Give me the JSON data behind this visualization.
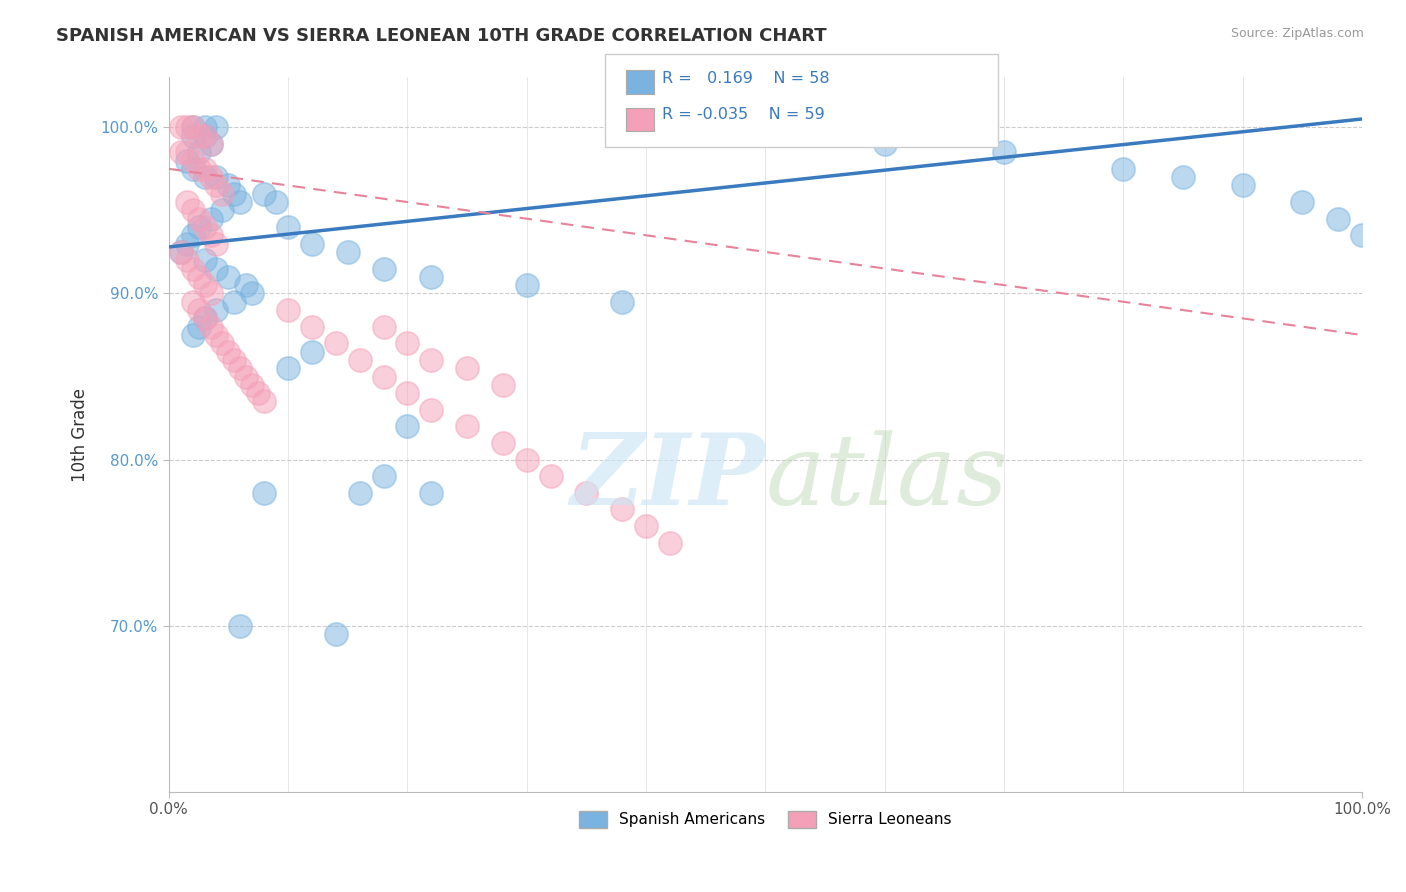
{
  "title": "SPANISH AMERICAN VS SIERRA LEONEAN 10TH GRADE CORRELATION CHART",
  "source": "Source: ZipAtlas.com",
  "ylabel": "10th Grade",
  "xlim": [
    0.0,
    1.0
  ],
  "ylim": [
    0.6,
    1.03
  ],
  "ytick_positions": [
    0.7,
    0.8,
    0.9,
    1.0
  ],
  "ytick_labels": [
    "70.0%",
    "80.0%",
    "90.0%",
    "100.0%"
  ],
  "legend_label1": "Spanish Americans",
  "legend_label2": "Sierra Leoneans",
  "color_blue": "#7ab3e0",
  "color_pink": "#f4a0b8",
  "blue_line_color": "#3a7abf",
  "pink_line_color": "#e8829a",
  "blue_scatter_x": [
    0.02,
    0.03,
    0.04,
    0.02,
    0.03,
    0.035,
    0.025,
    0.015,
    0.02,
    0.03,
    0.04,
    0.05,
    0.055,
    0.06,
    0.045,
    0.035,
    0.025,
    0.02,
    0.015,
    0.01,
    0.03,
    0.04,
    0.05,
    0.065,
    0.07,
    0.055,
    0.04,
    0.03,
    0.025,
    0.02,
    0.08,
    0.09,
    0.1,
    0.12,
    0.15,
    0.18,
    0.22,
    0.3,
    0.38,
    0.55,
    0.6,
    0.7,
    0.8,
    0.85,
    0.9,
    0.95,
    0.98,
    1.0,
    0.12,
    0.18,
    0.22,
    0.1,
    0.08,
    0.06,
    0.14,
    0.16,
    0.2
  ],
  "blue_scatter_y": [
    1.0,
    1.0,
    1.0,
    0.995,
    0.995,
    0.99,
    0.985,
    0.98,
    0.975,
    0.97,
    0.97,
    0.965,
    0.96,
    0.955,
    0.95,
    0.945,
    0.94,
    0.935,
    0.93,
    0.925,
    0.92,
    0.915,
    0.91,
    0.905,
    0.9,
    0.895,
    0.89,
    0.885,
    0.88,
    0.875,
    0.96,
    0.955,
    0.94,
    0.93,
    0.925,
    0.915,
    0.91,
    0.905,
    0.895,
    1.0,
    0.99,
    0.985,
    0.975,
    0.97,
    0.965,
    0.955,
    0.945,
    0.935,
    0.865,
    0.79,
    0.78,
    0.855,
    0.78,
    0.7,
    0.695,
    0.78,
    0.82
  ],
  "pink_scatter_x": [
    0.01,
    0.015,
    0.02,
    0.025,
    0.03,
    0.035,
    0.01,
    0.015,
    0.02,
    0.025,
    0.03,
    0.035,
    0.04,
    0.045,
    0.015,
    0.02,
    0.025,
    0.03,
    0.035,
    0.04,
    0.01,
    0.015,
    0.02,
    0.025,
    0.03,
    0.035,
    0.02,
    0.025,
    0.03,
    0.035,
    0.04,
    0.045,
    0.05,
    0.055,
    0.06,
    0.065,
    0.07,
    0.075,
    0.08,
    0.1,
    0.12,
    0.14,
    0.16,
    0.18,
    0.2,
    0.22,
    0.25,
    0.28,
    0.3,
    0.32,
    0.35,
    0.38,
    0.4,
    0.42,
    0.18,
    0.2,
    0.22,
    0.25,
    0.28
  ],
  "pink_scatter_y": [
    1.0,
    1.0,
    1.0,
    0.995,
    0.995,
    0.99,
    0.985,
    0.985,
    0.98,
    0.975,
    0.975,
    0.97,
    0.965,
    0.96,
    0.955,
    0.95,
    0.945,
    0.94,
    0.935,
    0.93,
    0.925,
    0.92,
    0.915,
    0.91,
    0.905,
    0.9,
    0.895,
    0.89,
    0.885,
    0.88,
    0.875,
    0.87,
    0.865,
    0.86,
    0.855,
    0.85,
    0.845,
    0.84,
    0.835,
    0.89,
    0.88,
    0.87,
    0.86,
    0.85,
    0.84,
    0.83,
    0.82,
    0.81,
    0.8,
    0.79,
    0.78,
    0.77,
    0.76,
    0.75,
    0.88,
    0.87,
    0.86,
    0.855,
    0.845
  ],
  "blue_line": {
    "x0": 0.0,
    "x1": 1.0,
    "y0": 0.928,
    "y1": 1.005
  },
  "pink_line": {
    "x0": 0.0,
    "x1": 1.0,
    "y0": 0.975,
    "y1": 0.875
  }
}
